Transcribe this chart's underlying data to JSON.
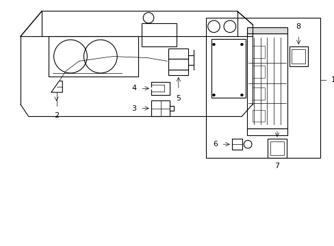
{
  "bg_color": "#ffffff",
  "line_color": "#000000",
  "line_width": 0.8,
  "thin_line": 0.5,
  "figsize": [
    4.89,
    3.6
  ],
  "dpi": 100
}
